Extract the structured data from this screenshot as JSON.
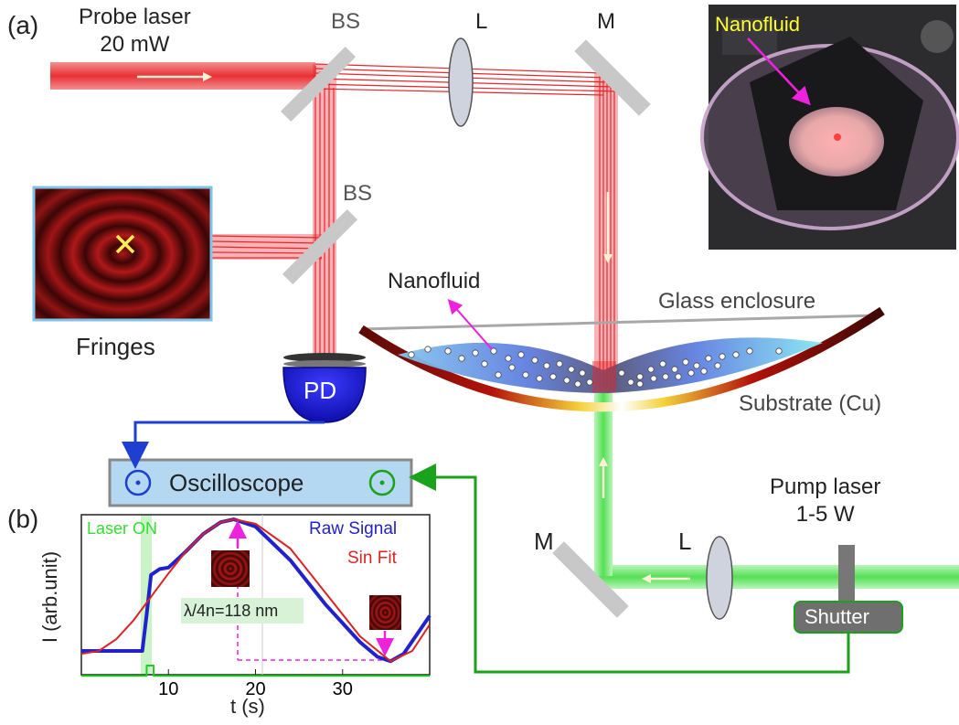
{
  "panel_a": {
    "label": "(a)",
    "probe_laser": {
      "line1": "Probe laser",
      "line2": "20 mW"
    },
    "bs_top": "BS",
    "bs_mid": "BS",
    "lens_top": "L",
    "mirror_top": "M",
    "fringes": "Fringes",
    "photodetector": "PD",
    "nanofluid": "Nanofluid",
    "glass_enclosure": "Glass enclosure",
    "substrate": "Substrate (Cu)",
    "oscilloscope": "Oscilloscope",
    "mirror_bottom": "M",
    "lens_bottom": "L",
    "pump_laser": {
      "line1": "Pump laser",
      "line2": "1-5 W"
    },
    "shutter": "Shutter",
    "photo_label": "Nanofluid"
  },
  "panel_b": {
    "label": "(b)",
    "laser_on": "Laser ON",
    "annotation": "λ/4n=118 nm",
    "chart_data": {
      "type": "line",
      "xlabel": "t (s)",
      "ylabel": "I (arb.unit)",
      "xlim": [
        0,
        40
      ],
      "xticks": [
        10,
        20,
        30
      ],
      "legend": [
        "Raw Signal",
        "Sin Fit"
      ],
      "series": [
        {
          "name": "Raw Signal",
          "color": "#2222cc",
          "x": [
            0,
            7,
            7.5,
            8,
            9,
            10,
            12,
            14,
            16,
            17.5,
            20,
            24,
            28,
            32,
            34,
            35.5,
            37,
            40
          ],
          "y": [
            0.1,
            0.1,
            0.35,
            0.62,
            0.66,
            0.67,
            0.78,
            0.9,
            0.98,
            1.0,
            0.95,
            0.72,
            0.42,
            0.16,
            0.06,
            0.03,
            0.08,
            0.34
          ]
        },
        {
          "name": "Sin Fit",
          "color": "#dd2222",
          "x": [
            0,
            2,
            4,
            6,
            8,
            10,
            12,
            14,
            16,
            17.5,
            20,
            24,
            28,
            32,
            35.5,
            38,
            40
          ],
          "y": [
            0.08,
            0.1,
            0.18,
            0.31,
            0.47,
            0.63,
            0.78,
            0.9,
            0.98,
            1.0,
            0.97,
            0.8,
            0.5,
            0.2,
            0.03,
            0.1,
            0.28
          ]
        },
        {
          "name": "Laser ON",
          "color": "#22cc22",
          "x": [
            0,
            7.5,
            7.5,
            8.3,
            8.3,
            40
          ],
          "y": [
            -0.07,
            -0.07,
            0.0,
            0.0,
            -0.07,
            -0.07
          ]
        }
      ]
    }
  },
  "colors": {
    "probe_beam": "#e8252a",
    "pump_beam": "#6fe36f",
    "pd_blue": "#1d1dd8",
    "wire_blue": "#1f3fd0",
    "wire_green": "#1aa21a",
    "label_yellow": "#ffff33",
    "label_magenta": "#ee22dd"
  }
}
